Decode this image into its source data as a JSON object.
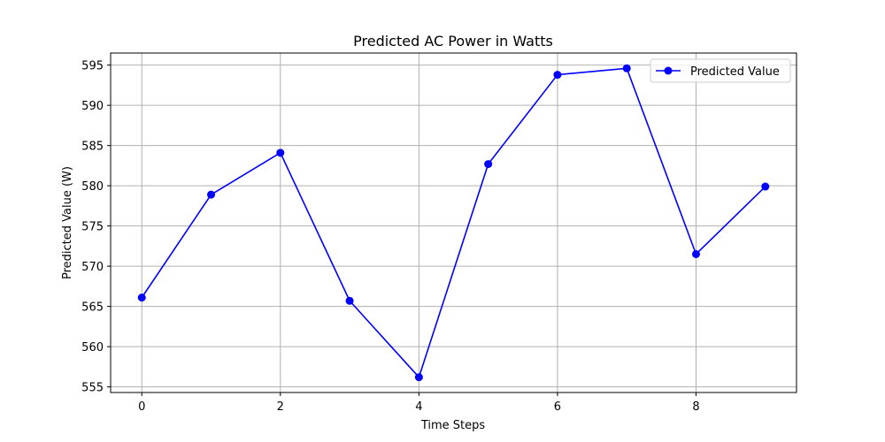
{
  "chart_data": {
    "type": "line",
    "title": "Predicted AC Power in Watts",
    "xlabel": "Time Steps",
    "ylabel": "Predicted Value (W)",
    "x": [
      0,
      1,
      2,
      3,
      4,
      5,
      6,
      7,
      8,
      9
    ],
    "series": [
      {
        "name": "Predicted Value",
        "color": "#0000ff",
        "marker": "circle",
        "values": [
          566.1,
          578.9,
          584.1,
          565.7,
          556.2,
          582.7,
          593.8,
          594.6,
          571.5,
          579.9
        ]
      }
    ],
    "xticks": [
      0,
      2,
      4,
      6,
      8
    ],
    "xtick_labels": [
      "0",
      "2",
      "4",
      "6",
      "8"
    ],
    "yticks": [
      555,
      560,
      565,
      570,
      575,
      580,
      585,
      590,
      595
    ],
    "ytick_labels": [
      "555",
      "560",
      "565",
      "570",
      "575",
      "580",
      "585",
      "590",
      "595"
    ],
    "xlim": [
      -0.45,
      9.45
    ],
    "ylim": [
      554.3,
      596.5
    ],
    "grid": true,
    "legend_position": "top-right"
  }
}
